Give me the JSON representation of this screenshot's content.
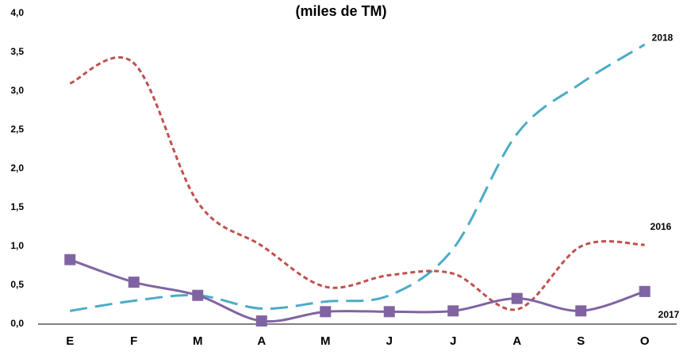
{
  "chart_data": {
    "type": "line",
    "title": "(miles de TM)",
    "categories": [
      "E",
      "F",
      "M",
      "A",
      "M",
      "J",
      "J",
      "A",
      "S",
      "O"
    ],
    "series": [
      {
        "name": "2018",
        "color": "#4bacc6",
        "dash": "long",
        "values": [
          0.17,
          0.3,
          0.37,
          0.2,
          0.29,
          0.37,
          0.97,
          2.45,
          3.1,
          3.6
        ]
      },
      {
        "name": "2016",
        "color": "#c0504d",
        "dash": "short",
        "values": [
          3.1,
          3.36,
          1.57,
          1.01,
          0.48,
          0.63,
          0.65,
          0.19,
          1.0,
          1.02
        ]
      },
      {
        "name": "2017",
        "color": "#8064a2",
        "dash": "solid",
        "markers": true,
        "values": [
          0.83,
          0.54,
          0.37,
          0.04,
          0.16,
          0.16,
          0.17,
          0.33,
          0.17,
          0.42
        ]
      }
    ],
    "ylim": [
      0,
      4
    ],
    "yticks": [
      {
        "value": 0,
        "label": "0,0"
      },
      {
        "value": 0.5,
        "label": "0,5"
      },
      {
        "value": 1,
        "label": "1,0"
      },
      {
        "value": 1.5,
        "label": "1,5"
      },
      {
        "value": 2,
        "label": "2,0"
      },
      {
        "value": 2.5,
        "label": "2,5"
      },
      {
        "value": 3,
        "label": "3,0"
      },
      {
        "value": 3.5,
        "label": "3,5"
      },
      {
        "value": 4,
        "label": "4,0"
      }
    ]
  }
}
